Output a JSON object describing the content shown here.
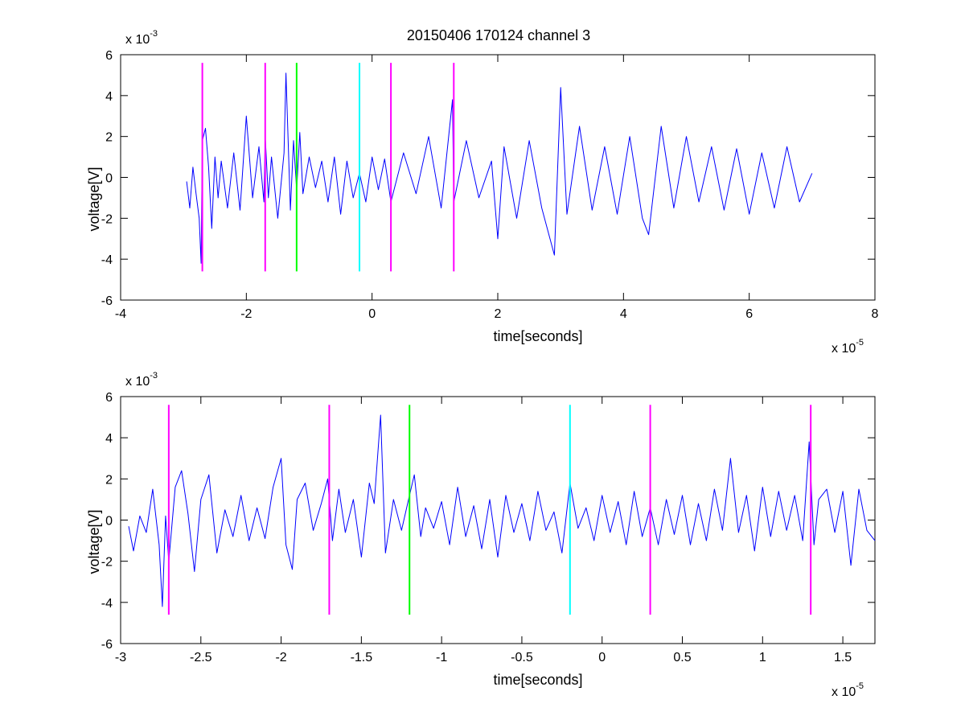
{
  "chart_data": [
    {
      "type": "line",
      "title": "20150406 170124 channel 3",
      "xlabel": "time[seconds]",
      "ylabel": "voltage[V]",
      "x_multiplier": {
        "base": "x 10",
        "exponent": "-5"
      },
      "y_multiplier": {
        "base": "x 10",
        "exponent": "-3"
      },
      "xlim": [
        -4,
        8
      ],
      "ylim": [
        -6,
        6
      ],
      "xticks": [
        -4,
        -2,
        0,
        2,
        4,
        6,
        8
      ],
      "xtick_labels": [
        "-4",
        "-2",
        "0",
        "2",
        "4",
        "6",
        "8"
      ],
      "yticks": [
        -6,
        -4,
        -2,
        0,
        2,
        4,
        6
      ],
      "ytick_labels": [
        "-6",
        "-4",
        "-2",
        "0",
        "2",
        "4",
        "6"
      ],
      "grid": false,
      "series": [
        {
          "color": "#0000ff",
          "x": [
            -2.95,
            -2.9,
            -2.85,
            -2.8,
            -2.75,
            -2.72,
            -2.7,
            -2.65,
            -2.6,
            -2.55,
            -2.5,
            -2.45,
            -2.4,
            -2.3,
            -2.2,
            -2.1,
            -2.0,
            -1.9,
            -1.8,
            -1.72,
            -1.7,
            -1.65,
            -1.6,
            -1.5,
            -1.4,
            -1.37,
            -1.3,
            -1.25,
            -1.2,
            -1.15,
            -1.1,
            -1.0,
            -0.9,
            -0.8,
            -0.7,
            -0.6,
            -0.5,
            -0.4,
            -0.3,
            -0.2,
            -0.1,
            0.0,
            0.1,
            0.2,
            0.3,
            0.5,
            0.7,
            0.9,
            1.1,
            1.28,
            1.3,
            1.5,
            1.7,
            1.9,
            2.0,
            2.1,
            2.3,
            2.5,
            2.7,
            2.9,
            3.0,
            3.1,
            3.3,
            3.5,
            3.7,
            3.9,
            4.1,
            4.3,
            4.4,
            4.6,
            4.8,
            5.0,
            5.2,
            5.4,
            5.6,
            5.8,
            6.0,
            6.2,
            6.4,
            6.6,
            6.8,
            7.0
          ],
          "y": [
            -0.2,
            -1.5,
            0.5,
            -0.8,
            -2.0,
            -4.2,
            1.8,
            2.4,
            0.5,
            -2.5,
            1.0,
            -1.0,
            0.8,
            -1.5,
            1.2,
            -1.6,
            3.0,
            -1.0,
            1.5,
            -1.2,
            2.0,
            -1.0,
            1.0,
            -2.0,
            1.2,
            5.1,
            -1.6,
            1.8,
            -0.6,
            2.2,
            -0.8,
            1.0,
            -0.5,
            0.8,
            -1.2,
            1.0,
            -1.8,
            0.8,
            -1.0,
            0.2,
            -1.2,
            1.0,
            -0.6,
            0.9,
            -1.2,
            1.2,
            -0.8,
            2.0,
            -1.5,
            3.8,
            -1.2,
            1.8,
            -1.0,
            0.8,
            -3.0,
            1.5,
            -2.0,
            1.8,
            -1.5,
            -3.8,
            4.4,
            -1.8,
            2.5,
            -1.6,
            1.5,
            -1.8,
            2.0,
            -2.0,
            -2.8,
            2.5,
            -1.5,
            2.0,
            -1.2,
            1.5,
            -1.6,
            1.4,
            -1.8,
            1.2,
            -1.5,
            1.5,
            -1.2,
            0.2
          ]
        }
      ],
      "markers": [
        {
          "x": -2.7,
          "y_range": [
            -4.6,
            5.6
          ],
          "color": "#ff00ff"
        },
        {
          "x": -1.7,
          "y_range": [
            -4.6,
            5.6
          ],
          "color": "#ff00ff"
        },
        {
          "x": -1.2,
          "y_range": [
            -4.6,
            5.6
          ],
          "color": "#00ff00"
        },
        {
          "x": -0.2,
          "y_range": [
            -4.6,
            5.6
          ],
          "color": "#00ffff"
        },
        {
          "x": 0.3,
          "y_range": [
            -4.6,
            5.6
          ],
          "color": "#ff00ff"
        },
        {
          "x": 1.3,
          "y_range": [
            -4.6,
            5.6
          ],
          "color": "#ff00ff"
        }
      ]
    },
    {
      "type": "line",
      "title": "",
      "xlabel": "time[seconds]",
      "ylabel": "voltage[V]",
      "x_multiplier": {
        "base": "x 10",
        "exponent": "-5"
      },
      "y_multiplier": {
        "base": "x 10",
        "exponent": "-3"
      },
      "xlim": [
        -3.0,
        1.7
      ],
      "ylim": [
        -6,
        6
      ],
      "xticks": [
        -3.0,
        -2.5,
        -2.0,
        -1.5,
        -1.0,
        -0.5,
        0.0,
        0.5,
        1.0,
        1.5
      ],
      "xtick_labels": [
        "-3",
        "-2.5",
        "-2",
        "-1.5",
        "-1",
        "-0.5",
        "0",
        "0.5",
        "1",
        "1.5"
      ],
      "yticks": [
        -6,
        -4,
        -2,
        0,
        2,
        4,
        6
      ],
      "ytick_labels": [
        "-6",
        "-4",
        "-2",
        "0",
        "2",
        "4",
        "6"
      ],
      "grid": false,
      "series": [
        {
          "color": "#0000ff",
          "x": [
            -2.95,
            -2.92,
            -2.88,
            -2.84,
            -2.8,
            -2.76,
            -2.74,
            -2.72,
            -2.7,
            -2.66,
            -2.62,
            -2.58,
            -2.54,
            -2.5,
            -2.45,
            -2.4,
            -2.35,
            -2.3,
            -2.25,
            -2.2,
            -2.15,
            -2.1,
            -2.05,
            -2.0,
            -1.97,
            -1.93,
            -1.9,
            -1.85,
            -1.8,
            -1.75,
            -1.71,
            -1.68,
            -1.64,
            -1.6,
            -1.55,
            -1.5,
            -1.45,
            -1.42,
            -1.38,
            -1.35,
            -1.3,
            -1.25,
            -1.2,
            -1.17,
            -1.13,
            -1.1,
            -1.05,
            -1.0,
            -0.95,
            -0.9,
            -0.85,
            -0.8,
            -0.75,
            -0.7,
            -0.65,
            -0.6,
            -0.55,
            -0.5,
            -0.45,
            -0.4,
            -0.35,
            -0.3,
            -0.25,
            -0.2,
            -0.15,
            -0.1,
            -0.05,
            0.0,
            0.05,
            0.1,
            0.15,
            0.2,
            0.25,
            0.3,
            0.35,
            0.4,
            0.45,
            0.5,
            0.55,
            0.6,
            0.65,
            0.7,
            0.75,
            0.8,
            0.85,
            0.9,
            0.95,
            1.0,
            1.05,
            1.1,
            1.15,
            1.2,
            1.25,
            1.29,
            1.32,
            1.35,
            1.4,
            1.45,
            1.5,
            1.55,
            1.6,
            1.65,
            1.7
          ],
          "y": [
            -0.3,
            -1.5,
            0.2,
            -0.6,
            1.5,
            -1.2,
            -4.2,
            0.2,
            -2.0,
            1.6,
            2.4,
            0.3,
            -2.5,
            1.0,
            2.2,
            -1.6,
            0.5,
            -0.8,
            1.2,
            -1.0,
            0.6,
            -0.9,
            1.6,
            3.0,
            -1.2,
            -2.4,
            1.0,
            1.8,
            -0.5,
            0.8,
            2.0,
            -1.0,
            1.5,
            -0.6,
            1.0,
            -1.8,
            1.8,
            0.8,
            5.1,
            -1.6,
            1.0,
            -0.5,
            1.2,
            2.2,
            -0.8,
            0.6,
            -0.4,
            0.9,
            -1.2,
            1.6,
            -0.8,
            0.7,
            -1.4,
            1.0,
            -1.8,
            1.2,
            -0.6,
            0.8,
            -1.0,
            1.4,
            -0.5,
            0.4,
            -1.6,
            1.8,
            -0.4,
            0.6,
            -1.0,
            1.2,
            -0.6,
            0.9,
            -1.2,
            1.4,
            -0.8,
            0.6,
            -1.2,
            1.0,
            -0.7,
            1.2,
            -1.2,
            0.8,
            -1.0,
            1.5,
            -0.5,
            3.0,
            -0.6,
            1.2,
            -1.5,
            1.6,
            -0.8,
            1.4,
            -0.5,
            1.2,
            -1.0,
            3.8,
            -1.2,
            1.0,
            1.5,
            -0.6,
            1.4,
            -2.2,
            1.5,
            -0.5,
            -1.0
          ]
        }
      ],
      "markers": [
        {
          "x": -2.7,
          "y_range": [
            -4.6,
            5.6
          ],
          "color": "#ff00ff"
        },
        {
          "x": -1.7,
          "y_range": [
            -4.6,
            5.6
          ],
          "color": "#ff00ff"
        },
        {
          "x": -1.2,
          "y_range": [
            -4.6,
            5.6
          ],
          "color": "#00ff00"
        },
        {
          "x": -0.2,
          "y_range": [
            -4.6,
            5.6
          ],
          "color": "#00ffff"
        },
        {
          "x": 0.3,
          "y_range": [
            -4.6,
            5.6
          ],
          "color": "#ff00ff"
        },
        {
          "x": 1.3,
          "y_range": [
            -4.6,
            5.6
          ],
          "color": "#ff00ff"
        }
      ]
    }
  ]
}
